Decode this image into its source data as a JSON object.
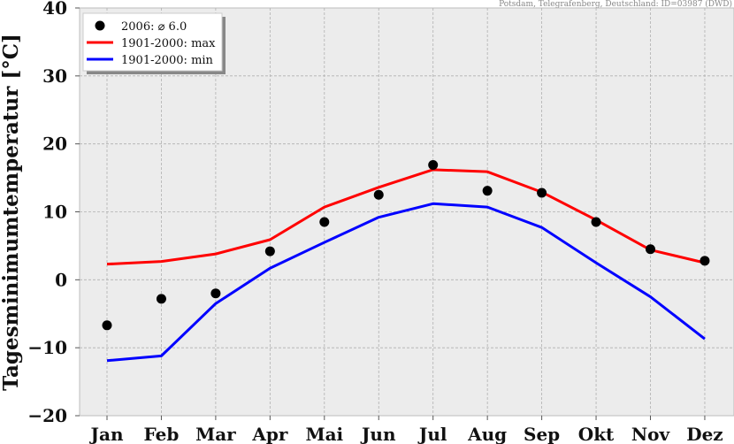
{
  "chart_data": {
    "type": "line",
    "source_note": "Potsdam, Telegrafenberg, Deutschland: ID=03987 (DWD)",
    "ylabel": "Tagesminimumtemperatur [°C]",
    "xlabel": "",
    "ylim": [
      -20,
      40
    ],
    "yticks": [
      -20,
      -10,
      0,
      10,
      20,
      30,
      40
    ],
    "ytick_labels": [
      "−20",
      "−10",
      "0",
      "10",
      "20",
      "30",
      "40"
    ],
    "categories": [
      "Jan",
      "Feb",
      "Mar",
      "Apr",
      "Mai",
      "Jun",
      "Jul",
      "Aug",
      "Sep",
      "Okt",
      "Nov",
      "Dez"
    ],
    "grid": true,
    "legend_position": "top-left",
    "series": [
      {
        "name": "2006: ⌀ 6.0",
        "kind": "scatter",
        "color": "#000000",
        "values": [
          -6.7,
          -2.8,
          -2.0,
          4.2,
          8.5,
          12.5,
          16.9,
          13.1,
          12.8,
          8.5,
          4.5,
          2.8
        ]
      },
      {
        "name": "1901-2000: max",
        "kind": "line",
        "color": "#ff0000",
        "values": [
          2.3,
          2.7,
          3.8,
          5.9,
          10.7,
          13.6,
          16.2,
          15.9,
          12.9,
          8.8,
          4.4,
          2.5
        ]
      },
      {
        "name": "1901-2000: min",
        "kind": "line",
        "color": "#0000ff",
        "values": [
          -11.9,
          -11.2,
          -3.5,
          1.7,
          5.5,
          9.2,
          11.2,
          10.7,
          7.7,
          2.5,
          -2.5,
          -8.7
        ]
      }
    ]
  }
}
